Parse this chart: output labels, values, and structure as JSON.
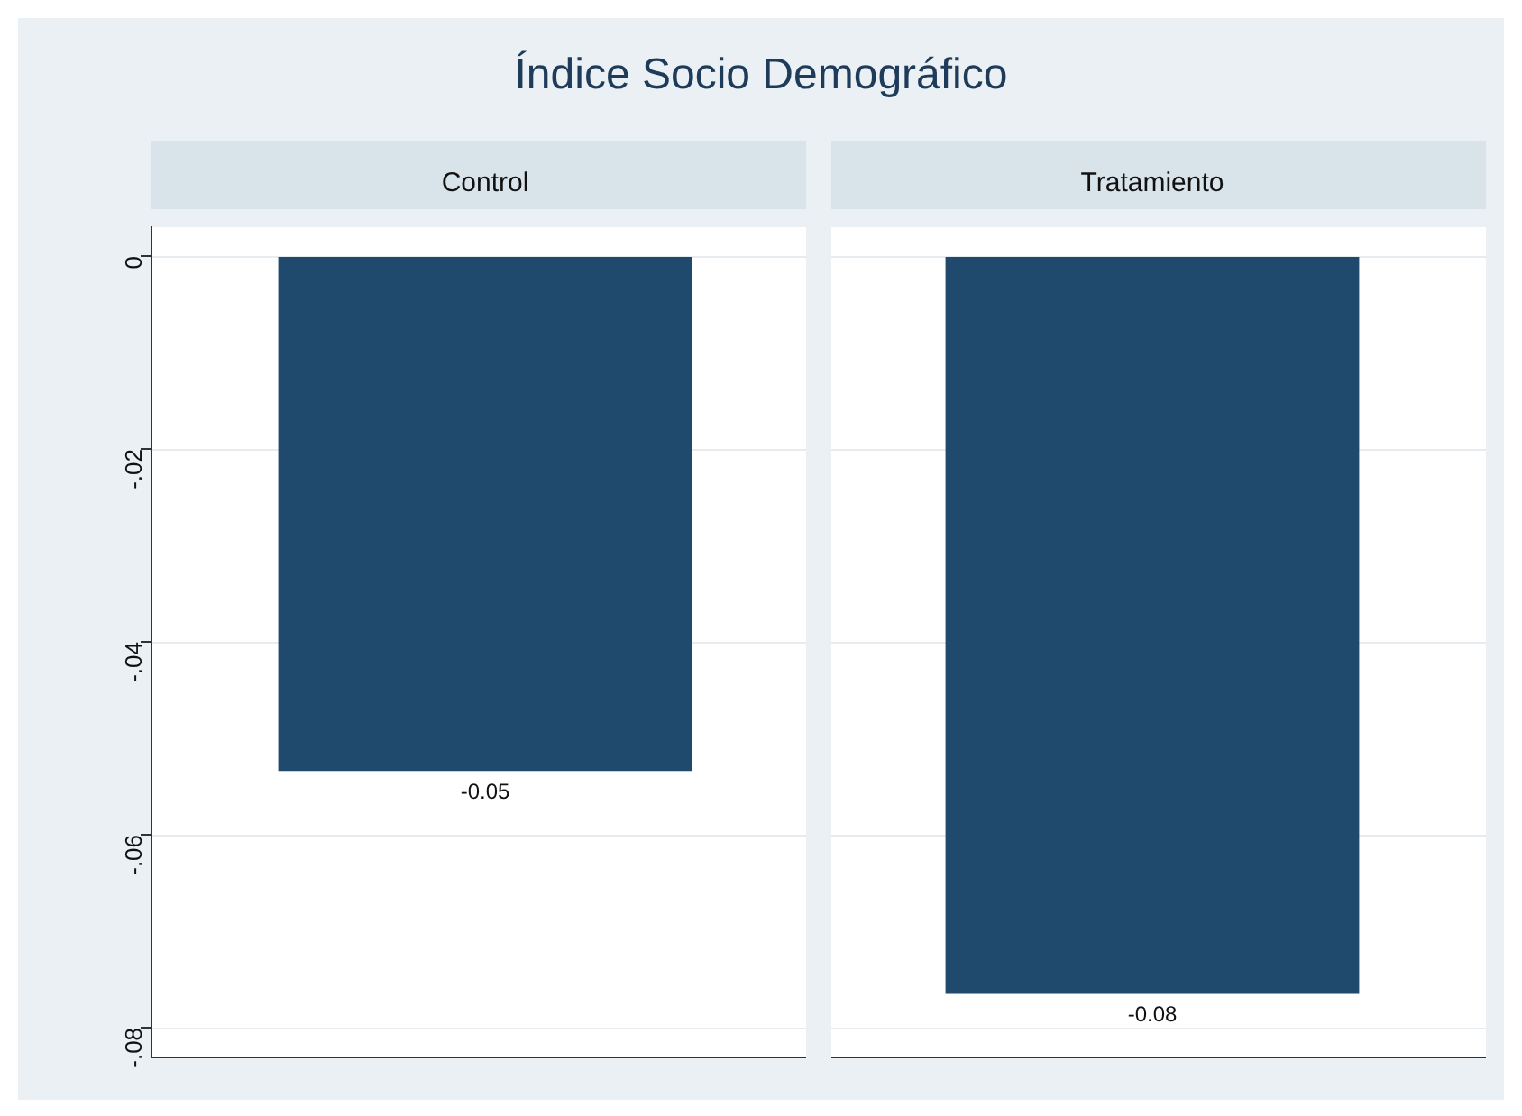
{
  "chart_data": {
    "type": "bar",
    "title": "Índice Socio Demográfico",
    "categories": [
      "Control",
      "Tratamiento"
    ],
    "values": [
      -0.0534,
      -0.0765
    ],
    "value_labels": [
      "-0.05",
      "-0.08"
    ],
    "color": "#1f4a6e",
    "ylim": [
      -0.083,
      0.003
    ],
    "yticks": [
      0,
      {
        "value": -0.02,
        "label": "-.02"
      },
      {
        "value": -0.04,
        "label": "-.04"
      },
      {
        "value": -0.06,
        "label": "-.06"
      },
      {
        "value": -0.08,
        "label": "-.08"
      }
    ],
    "grid": "y",
    "legend": false
  }
}
